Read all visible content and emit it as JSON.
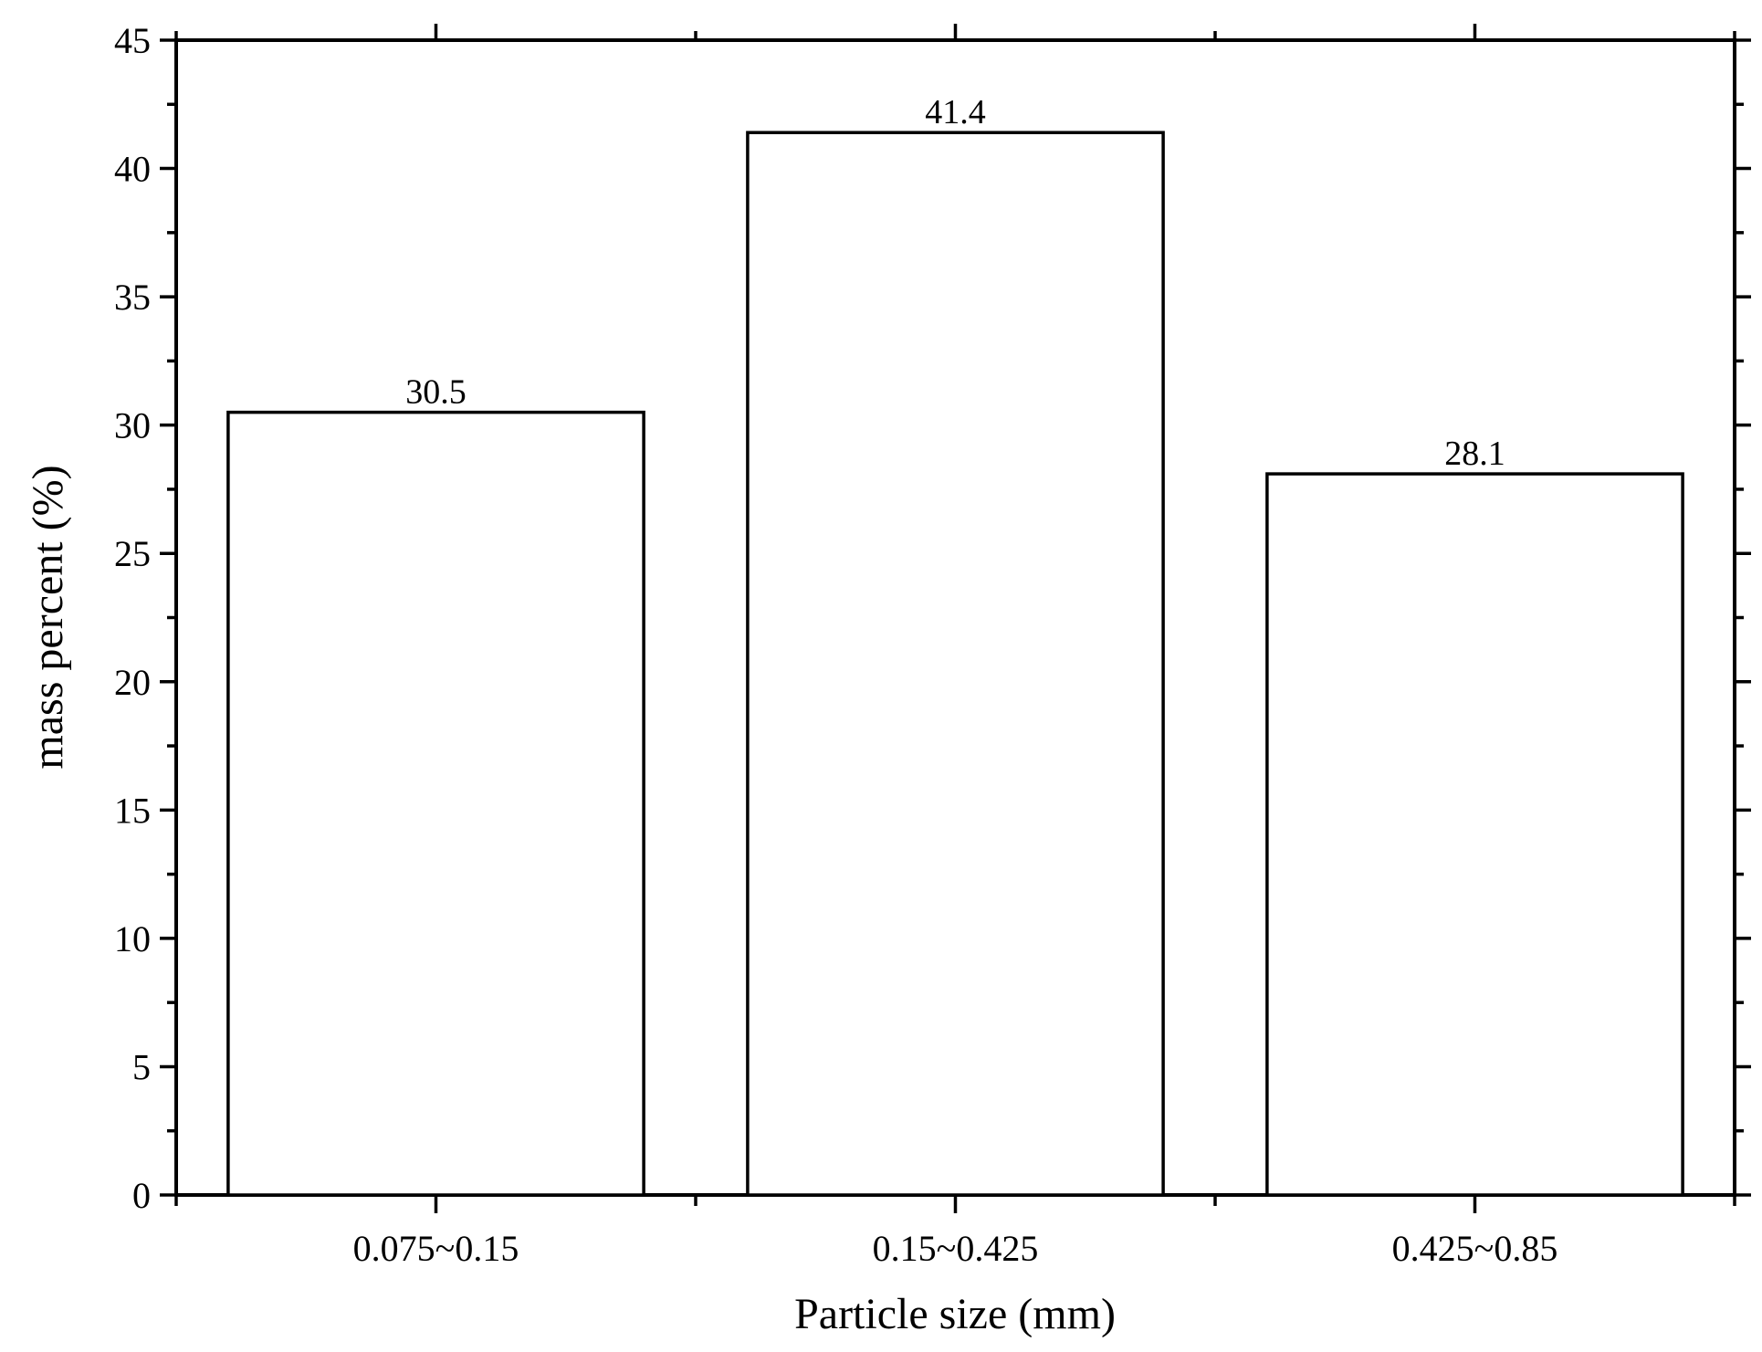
{
  "chart_data": {
    "type": "bar",
    "categories": [
      "0.075~0.15",
      "0.15~0.425",
      "0.425~0.85"
    ],
    "values": [
      30.5,
      41.4,
      28.1
    ],
    "value_labels": [
      "30.5",
      "41.4",
      "28.1"
    ],
    "title": "",
    "xlabel": "Particle size (mm)",
    "ylabel": "mass percent (%)",
    "ylim": [
      0,
      45
    ],
    "yticks": [
      0,
      5,
      10,
      15,
      20,
      25,
      30,
      35,
      40,
      45
    ],
    "ytick_labels": [
      "0",
      "5",
      "10",
      "15",
      "20",
      "25",
      "30",
      "35",
      "40",
      "45"
    ],
    "grid": false,
    "bar_fill": "#ffffff",
    "bar_edge": "#000000"
  }
}
